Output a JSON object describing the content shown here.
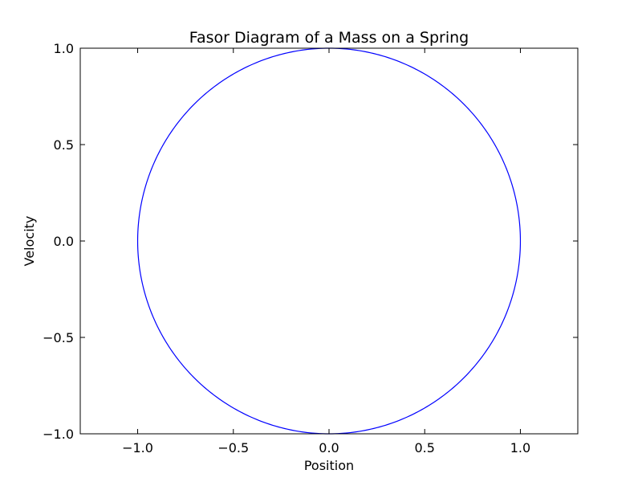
{
  "chart_data": {
    "type": "line",
    "title": "Fasor Diagram of a Mass on a Spring",
    "xlabel": "Position",
    "ylabel": "Velocity",
    "xlim": [
      -1.3,
      1.3
    ],
    "ylim": [
      -1.0,
      1.0
    ],
    "grid": false,
    "legend": "none",
    "x_ticks": [
      -1.0,
      -0.5,
      0.0,
      0.5,
      1.0
    ],
    "x_tick_labels": [
      "−1.0",
      "−0.5",
      "0.0",
      "0.5",
      "1.0"
    ],
    "y_ticks": [
      -1.0,
      -0.5,
      0.0,
      0.5,
      1.0
    ],
    "y_tick_labels": [
      "−1.0",
      "−0.5",
      "0.0",
      "0.5",
      "1.0"
    ],
    "series": [
      {
        "color": "#0000ff",
        "curve": "circle",
        "center": [
          0.0,
          0.0
        ],
        "radius": 1.0
      }
    ]
  }
}
